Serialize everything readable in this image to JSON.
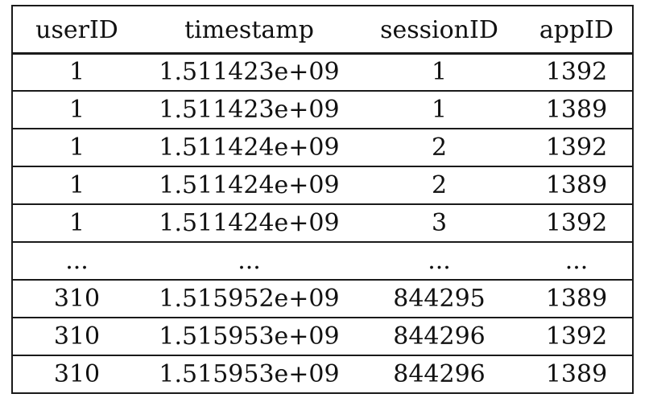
{
  "table": {
    "columns": [
      "userID",
      "timestamp",
      "sessionID",
      "appID"
    ],
    "rows": [
      [
        "1",
        "1.511423e+09",
        "1",
        "1392"
      ],
      [
        "1",
        "1.511423e+09",
        "1",
        "1389"
      ],
      [
        "1",
        "1.511424e+09",
        "2",
        "1392"
      ],
      [
        "1",
        "1.511424e+09",
        "2",
        "1389"
      ],
      [
        "1",
        "1.511424e+09",
        "3",
        "1392"
      ],
      [
        "...",
        "...",
        "...",
        "..."
      ],
      [
        "310",
        "1.515952e+09",
        "844295",
        "1389"
      ],
      [
        "310",
        "1.515953e+09",
        "844296",
        "1392"
      ],
      [
        "310",
        "1.515953e+09",
        "844296",
        "1389"
      ]
    ]
  }
}
